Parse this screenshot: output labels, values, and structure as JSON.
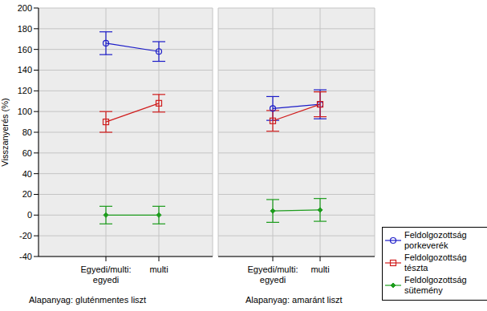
{
  "chart_data": [
    {
      "type": "line",
      "title": "Alapanyag: gluténmentes liszt",
      "x_label": "Egyedi/multi:",
      "y_label": "Visszanyerés (%)",
      "categories": [
        "egyedi",
        "multi"
      ],
      "ylim": [
        -40,
        200
      ],
      "yticks": [
        -40,
        -20,
        0,
        20,
        40,
        60,
        80,
        100,
        120,
        140,
        160,
        180,
        200
      ],
      "grid": true,
      "series": [
        {
          "name": "Feldolgozottság porkeverék",
          "color": "#1c1cc8",
          "marker": "circle",
          "values": [
            166,
            158
          ],
          "errors": [
            11,
            9.5
          ]
        },
        {
          "name": "Feldolgozottság tészta",
          "color": "#d01c1c",
          "marker": "square",
          "values": [
            90,
            108
          ],
          "errors": [
            10,
            8.5
          ]
        },
        {
          "name": "Feldolgozottság sütemény",
          "color": "#1c9c1c",
          "marker": "diamond",
          "values": [
            0,
            0
          ],
          "errors": [
            8.5,
            8.5
          ]
        }
      ]
    },
    {
      "type": "line",
      "title": "Alapanyag: amaránt liszt",
      "x_label": "Egyedi/multi:",
      "categories": [
        "egyedi",
        "multi"
      ],
      "ylim": [
        -40,
        200
      ],
      "yticks": [
        -40,
        -20,
        0,
        20,
        40,
        60,
        80,
        100,
        120,
        140,
        160,
        180,
        200
      ],
      "grid": true,
      "legend": "right",
      "series": [
        {
          "name": "Feldolgozottság porkeverék",
          "color": "#1c1cc8",
          "marker": "circle",
          "values": [
            103,
            107
          ],
          "errors": [
            11.5,
            14
          ]
        },
        {
          "name": "Feldolgozottság tészta",
          "color": "#d01c1c",
          "marker": "square",
          "values": [
            91,
            107
          ],
          "errors": [
            10,
            12
          ]
        },
        {
          "name": "Feldolgozottság sütemény",
          "color": "#1c9c1c",
          "marker": "diamond",
          "values": [
            4,
            5
          ],
          "errors": [
            11,
            11
          ]
        }
      ]
    }
  ]
}
